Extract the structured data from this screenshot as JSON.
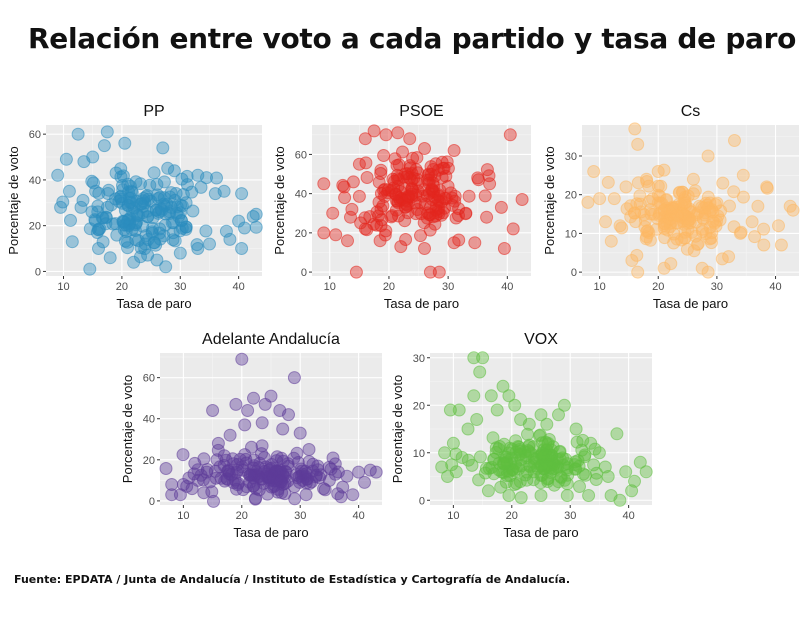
{
  "title": "Relación entre voto a cada partido y tasa de paro",
  "source": "Fuente: EPDATA / Junta de Andalucía / Instituto de Estadística y Cartografía de Andalucía.",
  "chart_data": [
    {
      "type": "scatter",
      "title": "PP",
      "xlabel": "Tasa de paro",
      "ylabel": "Porcentaje de voto",
      "xlim": [
        7,
        44
      ],
      "ylim": [
        -2,
        64
      ],
      "xticks": [
        10,
        20,
        30,
        40
      ],
      "yticks": [
        0,
        20,
        40,
        60
      ],
      "color": "#2b8cbe",
      "grid": true,
      "cloud": {
        "center": [
          24,
          25
        ],
        "spread": [
          5,
          8
        ],
        "count": 170
      },
      "points": [
        [
          12.5,
          60
        ],
        [
          17.5,
          61
        ],
        [
          15,
          50
        ],
        [
          9,
          42
        ],
        [
          10.5,
          49
        ],
        [
          11.5,
          13
        ],
        [
          13.5,
          48
        ],
        [
          14.5,
          1
        ],
        [
          17,
          55
        ],
        [
          20.5,
          56
        ],
        [
          27,
          54
        ],
        [
          33,
          42
        ],
        [
          34.5,
          41
        ],
        [
          36,
          34
        ],
        [
          37.5,
          35
        ],
        [
          40.5,
          34
        ],
        [
          40,
          22
        ],
        [
          41,
          19
        ],
        [
          42.5,
          24
        ],
        [
          43,
          25
        ],
        [
          40.5,
          10
        ],
        [
          38.5,
          14
        ],
        [
          35,
          12
        ],
        [
          33,
          10
        ],
        [
          30,
          8
        ],
        [
          27.5,
          2
        ],
        [
          26,
          5
        ],
        [
          22,
          4
        ],
        [
          18,
          6
        ],
        [
          16,
          10
        ],
        [
          13,
          28
        ],
        [
          9.5,
          28
        ],
        [
          11,
          35
        ],
        [
          29,
          44
        ],
        [
          31,
          30
        ],
        [
          19,
          43
        ],
        [
          15.5,
          35
        ],
        [
          24,
          12
        ],
        [
          28.5,
          28
        ],
        [
          26,
          38
        ]
      ]
    },
    {
      "type": "scatter",
      "title": "PSOE",
      "xlabel": "Tasa de paro",
      "ylabel": "Porcentaje de voto",
      "xlim": [
        7,
        44
      ],
      "ylim": [
        -2,
        75
      ],
      "xticks": [
        10,
        20,
        30,
        40
      ],
      "yticks": [
        0,
        20,
        40,
        60
      ],
      "color": "#e3261e",
      "grid": true,
      "cloud": {
        "center": [
          24,
          39
        ],
        "spread": [
          5,
          9
        ],
        "count": 170
      },
      "points": [
        [
          14.5,
          0
        ],
        [
          27,
          0
        ],
        [
          28.5,
          0
        ],
        [
          40.5,
          70
        ],
        [
          9,
          45
        ],
        [
          9,
          20
        ],
        [
          10.5,
          30
        ],
        [
          11,
          19
        ],
        [
          12.5,
          38
        ],
        [
          14,
          46
        ],
        [
          16,
          68
        ],
        [
          17.5,
          72
        ],
        [
          19.5,
          70
        ],
        [
          21.5,
          71
        ],
        [
          23.5,
          68
        ],
        [
          26,
          63
        ],
        [
          31,
          62
        ],
        [
          35,
          48
        ],
        [
          37,
          45
        ],
        [
          39,
          33
        ],
        [
          41,
          22
        ],
        [
          42.5,
          37
        ],
        [
          39.5,
          12
        ],
        [
          34.5,
          15
        ],
        [
          31,
          15
        ],
        [
          26,
          12
        ],
        [
          22,
          13
        ],
        [
          18.5,
          16
        ],
        [
          16,
          22
        ],
        [
          13.5,
          28
        ],
        [
          15,
          55
        ],
        [
          33,
          30
        ],
        [
          36.5,
          28
        ],
        [
          29,
          56
        ],
        [
          13,
          16
        ],
        [
          24,
          58
        ]
      ]
    },
    {
      "type": "scatter",
      "title": "Cs",
      "xlabel": "Tasa de paro",
      "ylabel": "Porcentaje de voto",
      "xlim": [
        7,
        44
      ],
      "ylim": [
        -1,
        38
      ],
      "xticks": [
        10,
        20,
        30,
        40
      ],
      "yticks": [
        0,
        10,
        20,
        30
      ],
      "color": "#fdb863",
      "grid": true,
      "cloud": {
        "center": [
          24,
          14
        ],
        "spread": [
          5,
          4
        ],
        "count": 170
      },
      "points": [
        [
          16,
          37
        ],
        [
          16.5,
          33
        ],
        [
          28.5,
          30
        ],
        [
          33,
          34
        ],
        [
          9,
          26
        ],
        [
          8,
          18
        ],
        [
          10,
          19
        ],
        [
          11,
          13
        ],
        [
          12.5,
          19
        ],
        [
          13.5,
          12
        ],
        [
          14.5,
          22
        ],
        [
          15.5,
          3
        ],
        [
          16.5,
          0
        ],
        [
          21,
          1
        ],
        [
          27.5,
          1
        ],
        [
          28.5,
          0
        ],
        [
          32,
          4
        ],
        [
          34.5,
          25
        ],
        [
          37,
          17
        ],
        [
          38.5,
          22
        ],
        [
          40.5,
          12
        ],
        [
          42.5,
          17
        ],
        [
          43,
          16
        ],
        [
          41,
          7
        ],
        [
          38,
          7
        ],
        [
          34,
          10
        ],
        [
          31,
          23
        ],
        [
          26,
          24
        ],
        [
          20,
          26
        ],
        [
          18,
          24
        ],
        [
          12,
          8
        ],
        [
          36,
          13
        ]
      ]
    },
    {
      "type": "scatter",
      "title": "Adelante Andalucía",
      "xlabel": "Tasa de paro",
      "ylabel": "Porcentaje de voto",
      "xlim": [
        6,
        44
      ],
      "ylim": [
        -2,
        72
      ],
      "xticks": [
        10,
        20,
        30,
        40
      ],
      "yticks": [
        0,
        20,
        40,
        60
      ],
      "color": "#5e3c99",
      "grid": true,
      "cloud": {
        "center": [
          24,
          13
        ],
        "spread": [
          5.5,
          5
        ],
        "count": 170
      },
      "points": [
        [
          20,
          69
        ],
        [
          29,
          60
        ],
        [
          15,
          44
        ],
        [
          19,
          47
        ],
        [
          21,
          44
        ],
        [
          22,
          50
        ],
        [
          24,
          47
        ],
        [
          25,
          51
        ],
        [
          26.5,
          44
        ],
        [
          28,
          42
        ],
        [
          23.5,
          38
        ],
        [
          20.5,
          37
        ],
        [
          27,
          35
        ],
        [
          18,
          32
        ],
        [
          30,
          33
        ],
        [
          16,
          28
        ],
        [
          31.5,
          25
        ],
        [
          33,
          17
        ],
        [
          35,
          10
        ],
        [
          36,
          18
        ],
        [
          38,
          12
        ],
        [
          40,
          14
        ],
        [
          42,
          15
        ],
        [
          43,
          14
        ],
        [
          41,
          9
        ],
        [
          39,
          3
        ],
        [
          37,
          2
        ],
        [
          34,
          6
        ],
        [
          8,
          8
        ],
        [
          8,
          3
        ],
        [
          9.5,
          3
        ],
        [
          10,
          8
        ],
        [
          11.5,
          6
        ],
        [
          12.5,
          10
        ],
        [
          13.5,
          4
        ],
        [
          14,
          14
        ],
        [
          17,
          22
        ],
        [
          31,
          3
        ]
      ]
    },
    {
      "type": "scatter",
      "title": "VOX",
      "xlabel": "Tasa de paro",
      "ylabel": "Porcentaje de voto",
      "xlim": [
        6,
        44
      ],
      "ylim": [
        -1,
        31
      ],
      "xticks": [
        10,
        20,
        30,
        40
      ],
      "yticks": [
        0,
        10,
        20,
        30
      ],
      "color": "#5fbf3f",
      "grid": true,
      "cloud": {
        "center": [
          24,
          8
        ],
        "spread": [
          5.5,
          2.7
        ],
        "count": 170
      },
      "points": [
        [
          13.5,
          30
        ],
        [
          15,
          30
        ],
        [
          14.5,
          27
        ],
        [
          13.5,
          22
        ],
        [
          16.5,
          22
        ],
        [
          18.5,
          24
        ],
        [
          19.5,
          22
        ],
        [
          20.5,
          20
        ],
        [
          21.5,
          17
        ],
        [
          17.5,
          19
        ],
        [
          14,
          17
        ],
        [
          11,
          19
        ],
        [
          9.5,
          19
        ],
        [
          12.5,
          15
        ],
        [
          10,
          12
        ],
        [
          8.5,
          10
        ],
        [
          9,
          5
        ],
        [
          8,
          7
        ],
        [
          10.5,
          6
        ],
        [
          11.5,
          9
        ],
        [
          23,
          16
        ],
        [
          25,
          18
        ],
        [
          26,
          16
        ],
        [
          28,
          18
        ],
        [
          29,
          20
        ],
        [
          31,
          15
        ],
        [
          33.5,
          12
        ],
        [
          35,
          10
        ],
        [
          36,
          7
        ],
        [
          38,
          14
        ],
        [
          39.5,
          6
        ],
        [
          40.5,
          2
        ],
        [
          42,
          8
        ],
        [
          43,
          6
        ],
        [
          41,
          4
        ],
        [
          38.5,
          0
        ],
        [
          37,
          1
        ],
        [
          36.5,
          5
        ],
        [
          29.5,
          1
        ],
        [
          25,
          1
        ],
        [
          19.5,
          1
        ],
        [
          16,
          2
        ]
      ]
    }
  ]
}
